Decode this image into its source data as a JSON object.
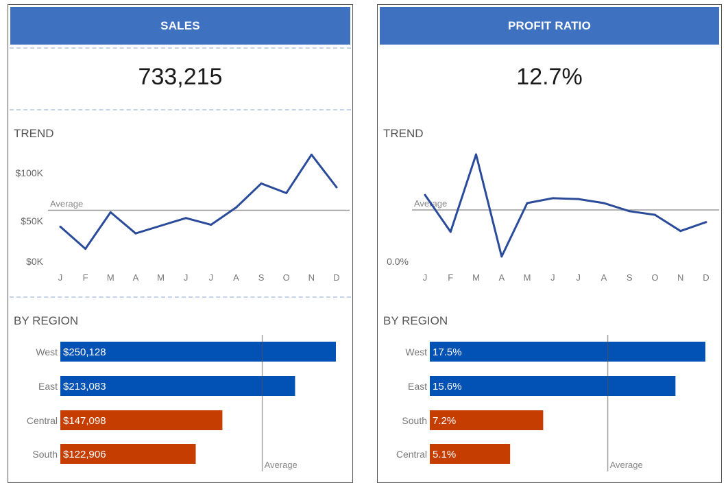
{
  "colors": {
    "header_bg": "#3e71c0",
    "line": "#2a4a9a",
    "above_avg_bar": "#0251b5",
    "below_avg_bar": "#c63d00",
    "avg_line": "#999999"
  },
  "sales": {
    "header": "SALES",
    "kpi": "733,215",
    "trend_title": "TREND",
    "region_title": "BY REGION",
    "avg_label": "Average"
  },
  "profit": {
    "header": "PROFIT RATIO",
    "kpi": "12.7%",
    "trend_title": "TREND",
    "region_title": "BY REGION",
    "avg_label": "Average"
  },
  "chart_data": [
    {
      "id": "sales-trend",
      "type": "line",
      "title": "TREND",
      "x": [
        "J",
        "F",
        "M",
        "A",
        "M",
        "J",
        "J",
        "A",
        "S",
        "O",
        "N",
        "D"
      ],
      "values": [
        44000,
        21000,
        59000,
        37000,
        45000,
        53000,
        46000,
        64000,
        89000,
        79000,
        119000,
        85000
      ],
      "y_ticks": [
        {
          "value": 0,
          "label": "$0K"
        },
        {
          "value": 50000,
          "label": "$50K"
        },
        {
          "value": 100000,
          "label": "$100K"
        }
      ],
      "ylim": [
        0,
        125000
      ],
      "reference_line": {
        "label": "Average",
        "value": 61100
      },
      "xlabel": "",
      "ylabel": "",
      "grid": false
    },
    {
      "id": "sales-region",
      "type": "bar",
      "orientation": "horizontal",
      "title": "BY REGION",
      "categories": [
        "West",
        "East",
        "Central",
        "South"
      ],
      "values": [
        250128,
        213083,
        147098,
        122906
      ],
      "value_labels": [
        "$250,128",
        "$213,083",
        "$147,098",
        "$122,906"
      ],
      "above_average": [
        true,
        true,
        false,
        false
      ],
      "reference_line": {
        "label": "Average",
        "value": 183304
      },
      "xlim": [
        0,
        250128
      ]
    },
    {
      "id": "profit-trend",
      "type": "line",
      "title": "TREND",
      "x": [
        "J",
        "F",
        "M",
        "A",
        "M",
        "J",
        "J",
        "A",
        "S",
        "O",
        "N",
        "D"
      ],
      "values": [
        16.4,
        7.3,
        26.4,
        1.2,
        14.4,
        15.6,
        15.4,
        14.4,
        12.4,
        11.5,
        7.5,
        9.7
      ],
      "y_ticks": [
        {
          "value": 0,
          "label": "0.0%"
        }
      ],
      "ylim": [
        0,
        27.5
      ],
      "reference_line": {
        "label": "Average",
        "value": 12.7
      },
      "xlabel": "",
      "ylabel": "",
      "grid": false
    },
    {
      "id": "profit-region",
      "type": "bar",
      "orientation": "horizontal",
      "title": "BY REGION",
      "categories": [
        "West",
        "East",
        "South",
        "Central"
      ],
      "values": [
        17.5,
        15.6,
        7.2,
        5.1
      ],
      "value_labels": [
        "17.5%",
        "15.6%",
        "7.2%",
        "5.1%"
      ],
      "above_average": [
        true,
        true,
        false,
        false
      ],
      "reference_line": {
        "label": "Average",
        "value": 11.3
      },
      "xlim": [
        0,
        17.5
      ]
    }
  ]
}
